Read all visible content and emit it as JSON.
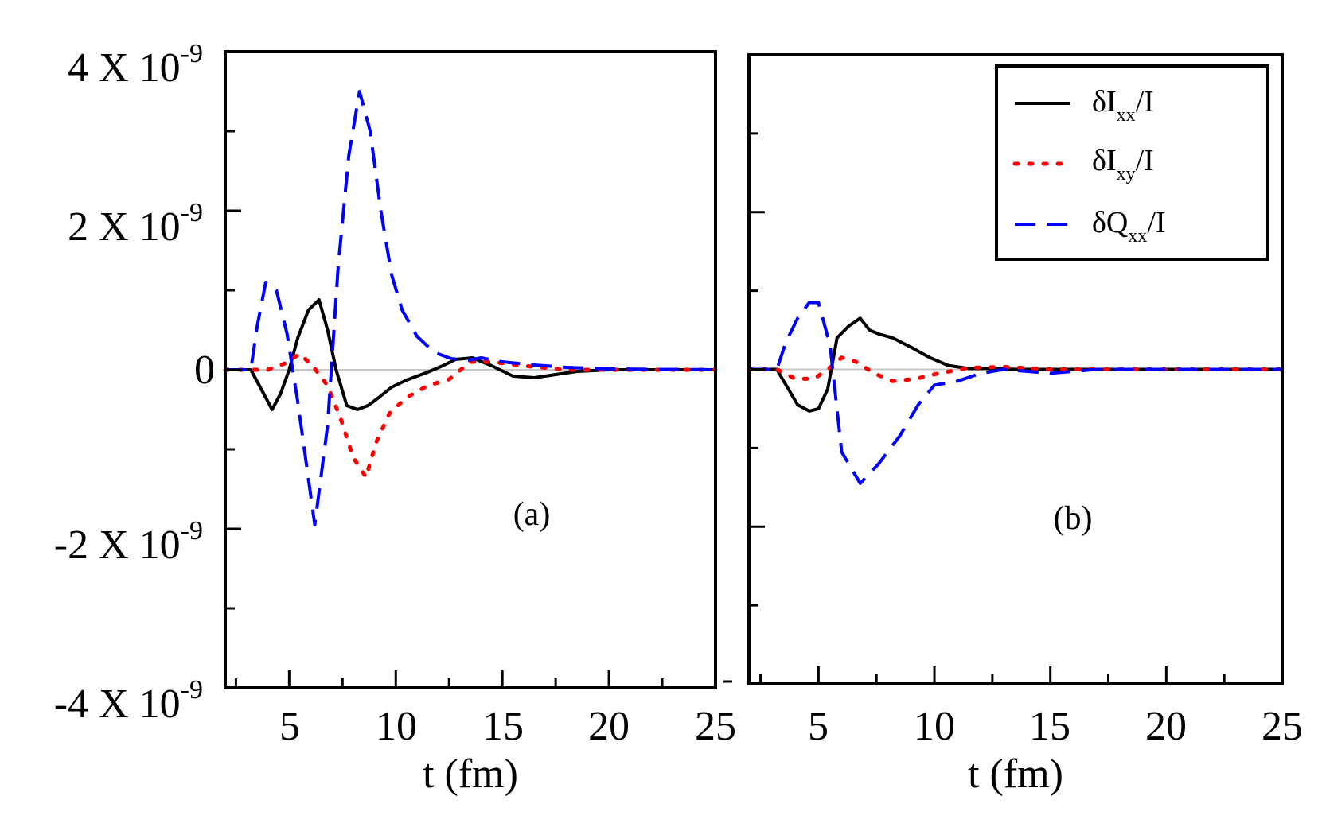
{
  "chart_data": [
    {
      "type": "line",
      "panel": "a",
      "panel_label": "(a)",
      "xlabel": "t (fm)",
      "xlim": [
        2,
        25
      ],
      "ylim": [
        -4e-09,
        4e-09
      ],
      "xticks": [
        "5",
        "10",
        "15",
        "20",
        "25"
      ],
      "yticks": [
        {
          "mantissa": "4 X 10",
          "exp": "-9"
        },
        {
          "mantissa": "2 X 10",
          "exp": "-9"
        },
        {
          "mantissa": "0",
          "exp": ""
        },
        {
          "mantissa": "-2 X 10",
          "exp": "-9"
        },
        {
          "mantissa": "-4 X 10",
          "exp": "-9"
        }
      ],
      "series": [
        {
          "name": "δIxx/I",
          "color": "#000000",
          "dash": "solid",
          "x": [
            2,
            3.2,
            3.6,
            4.2,
            4.6,
            5.0,
            5.4,
            5.9,
            6.4,
            6.8,
            7.2,
            7.7,
            8.2,
            8.7,
            9.2,
            9.8,
            10.5,
            11.5,
            12.2,
            12.8,
            13.6,
            14.5,
            15.5,
            16.5,
            17.5,
            18.5,
            20,
            25
          ],
          "values": [
            0,
            0,
            -2e-10,
            -5e-10,
            -3e-10,
            0,
            4e-10,
            7.5e-10,
            8.8e-10,
            5e-10,
            0,
            -4.5e-10,
            -5e-10,
            -4.5e-10,
            -3.5e-10,
            -2.2e-10,
            -1.3e-10,
            -3e-11,
            5e-11,
            1.3e-10,
            1.5e-10,
            5e-11,
            -8e-11,
            -1e-10,
            -6e-11,
            -2e-11,
            0,
            0
          ]
        },
        {
          "name": "δIxy/I",
          "color": "#ff0000",
          "dash": "dotted",
          "x": [
            2,
            3.2,
            4.0,
            4.8,
            5.5,
            6.1,
            6.8,
            7.4,
            8.0,
            8.6,
            9.1,
            9.7,
            10.5,
            11.5,
            12.5,
            13.5,
            14.5,
            16,
            18,
            20,
            25
          ],
          "values": [
            0,
            0,
            0,
            8e-11,
            2e-10,
            5e-11,
            -2e-10,
            -6e-10,
            -1.1e-09,
            -1.35e-09,
            -9e-10,
            -5.5e-10,
            -3.5e-10,
            -2e-10,
            -1.2e-10,
            1e-10,
            1e-10,
            5e-11,
            0,
            0,
            0
          ]
        },
        {
          "name": "δQxx/I",
          "color": "#0000ff",
          "dash": "dashed",
          "x": [
            2,
            3.2,
            3.5,
            3.9,
            4.4,
            4.9,
            5.4,
            6.2,
            6.8,
            7.3,
            7.8,
            8.3,
            8.8,
            9.3,
            9.8,
            10.3,
            11.0,
            11.8,
            12.6,
            13.4,
            14.0,
            15.0,
            16.5,
            18,
            20,
            25
          ],
          "values": [
            0,
            0,
            5.5e-10,
            1.1e-09,
            1e-09,
            4.5e-10,
            -4e-10,
            -1.95e-09,
            -7e-10,
            1.3e-09,
            2.7e-09,
            3.5e-09,
            3e-09,
            2e-09,
            1.2e-09,
            7.5e-10,
            4.2e-10,
            2.2e-10,
            1.4e-10,
            1.2e-10,
            1.5e-10,
            1e-10,
            6e-11,
            3e-11,
            1e-11,
            0
          ]
        }
      ]
    },
    {
      "type": "line",
      "panel": "b",
      "panel_label": "(b)",
      "xlabel": "t (fm)",
      "xlim": [
        2,
        25
      ],
      "ylim": [
        -4e-09,
        4e-09
      ],
      "xticks": [
        "5",
        "10",
        "15",
        "20",
        "25"
      ],
      "legend": {
        "placement": "top-right",
        "entries": [
          {
            "symbol": "δI",
            "sub": "xx",
            "suffix": "/I",
            "color": "#000000",
            "dash": "solid"
          },
          {
            "symbol": "δI",
            "sub": "xy",
            "suffix": "/I",
            "color": "#ff0000",
            "dash": "dotted"
          },
          {
            "symbol": "δQ",
            "sub": "xx",
            "suffix": "/I",
            "color": "#0000ff",
            "dash": "dashed"
          }
        ]
      },
      "series": [
        {
          "name": "δIxx/I",
          "color": "#000000",
          "dash": "solid",
          "x": [
            2,
            3.2,
            3.6,
            4.1,
            4.6,
            5.0,
            5.4,
            5.8,
            6.3,
            6.8,
            7.2,
            7.6,
            8.2,
            9.0,
            9.8,
            10.6,
            11.5,
            12.5,
            13.5,
            15,
            17,
            20,
            25
          ],
          "values": [
            0,
            0,
            -2e-10,
            -4.5e-10,
            -5.3e-10,
            -5e-10,
            -2.5e-10,
            4e-10,
            5.5e-10,
            6.5e-10,
            5e-10,
            4.5e-10,
            4e-10,
            2.8e-10,
            1.5e-10,
            5e-11,
            1e-11,
            1e-11,
            0,
            0,
            0,
            0,
            0
          ]
        },
        {
          "name": "δIxy/I",
          "color": "#ff0000",
          "dash": "dotted",
          "x": [
            2,
            3.2,
            4.0,
            4.8,
            5.4,
            6.0,
            6.6,
            7.4,
            8.2,
            9.2,
            10.2,
            11.5,
            13,
            15,
            18,
            25
          ],
          "values": [
            0,
            0,
            -1.2e-10,
            -1.2e-10,
            0,
            1.5e-10,
            1e-10,
            -5e-11,
            -1.5e-10,
            -1.2e-10,
            -5e-11,
            2e-11,
            3e-11,
            0,
            0,
            0
          ]
        },
        {
          "name": "δQxx/I",
          "color": "#0000ff",
          "dash": "dashed",
          "x": [
            2,
            3.2,
            3.6,
            4.1,
            4.6,
            5.0,
            5.5,
            6.0,
            6.4,
            6.8,
            7.6,
            8.5,
            9.3,
            10.0,
            11.0,
            12.0,
            13,
            15,
            17,
            20,
            25
          ],
          "values": [
            0,
            0,
            3.5e-10,
            6.5e-10,
            8.5e-10,
            8.5e-10,
            3e-10,
            -1.05e-09,
            -1.25e-09,
            -1.45e-09,
            -1.2e-09,
            -8.5e-10,
            -4.5e-10,
            -2e-10,
            -1.5e-10,
            -5e-11,
            0,
            -5e-11,
            0,
            0,
            0
          ]
        }
      ]
    }
  ]
}
